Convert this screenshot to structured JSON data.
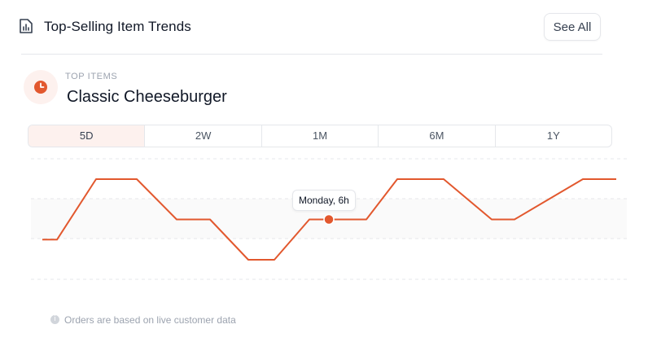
{
  "header": {
    "title": "Top-Selling Item Trends",
    "icon": "report-chart-icon",
    "see_all_label": "See All"
  },
  "item": {
    "icon": "clock-icon",
    "eyebrow": "TOP ITEMS",
    "name": "Classic Cheeseburger"
  },
  "tabs": [
    {
      "label": "5D",
      "active": true
    },
    {
      "label": "2W",
      "active": false
    },
    {
      "label": "1M",
      "active": false
    },
    {
      "label": "6M",
      "active": false
    },
    {
      "label": "1Y",
      "active": false
    }
  ],
  "chart_data": {
    "type": "line",
    "series": [
      {
        "values": [
          1,
          1,
          4,
          4,
          2,
          2,
          0,
          0,
          2,
          2,
          2,
          4,
          4,
          2,
          2,
          4,
          4
        ]
      }
    ],
    "highlight": {
      "index": 9,
      "label": "Monday, 6h"
    },
    "ylim": [
      0,
      4
    ],
    "grid": true,
    "line_color": "#e2582e"
  },
  "footer": {
    "note": "Orders are based on live customer data",
    "icon": "info-icon"
  }
}
